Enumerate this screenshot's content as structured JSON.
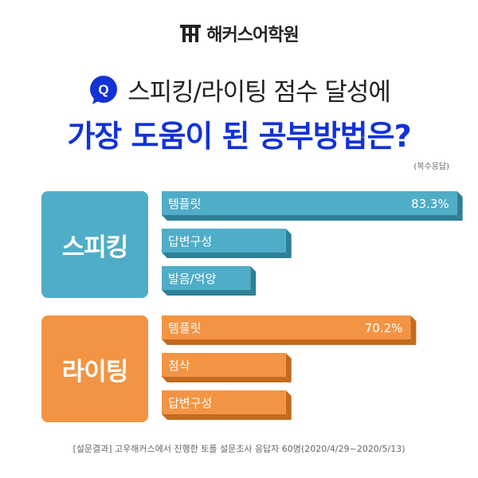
{
  "header": {
    "logo_text": "해커스어학원",
    "q_badge": "Q",
    "question": "스피킹/라이팅 점수 달성에",
    "headline": "가장 도움이 된 공부방법은?",
    "note": "(복수응답)"
  },
  "colors": {
    "speaking": "#4fadc7",
    "speaking_dark": "#2f7f96",
    "writing": "#f39444",
    "writing_dark": "#c46a1f",
    "accent": "#1232d8"
  },
  "chart_data": {
    "type": "bar",
    "orientation": "horizontal",
    "groups": [
      {
        "name": "스피킹",
        "color_key": "speaking",
        "bars": [
          {
            "label": "템플릿",
            "value": 83.3,
            "value_label": "83.3%"
          },
          {
            "label": "답변구성",
            "value": 35
          },
          {
            "label": "발음/억양",
            "value": 25
          }
        ]
      },
      {
        "name": "라이팅",
        "color_key": "writing",
        "bars": [
          {
            "label": "템플릿",
            "value": 70.2,
            "value_label": "70.2%"
          },
          {
            "label": "첨삭",
            "value": 35
          },
          {
            "label": "답변구성",
            "value": 35
          }
        ]
      }
    ]
  },
  "footer": "[설문결과] 고우해커스에서 진행한 토플 설문조사 응답자 60명(2020/4/29~2020/5/13)"
}
